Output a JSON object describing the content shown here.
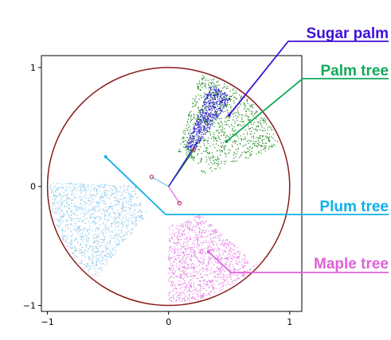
{
  "chart_data": {
    "type": "scatter",
    "xlim": [
      -1.05,
      1.1
    ],
    "ylim": [
      -1.05,
      1.1
    ],
    "x_ticks": [
      "−1",
      "0",
      "1"
    ],
    "y_ticks": [
      "1",
      "0",
      "−1"
    ],
    "x_tick_values": [
      -1,
      0,
      1
    ],
    "y_tick_values": [
      1,
      0,
      -1
    ],
    "grid": false,
    "circle": {
      "center": [
        0,
        0
      ],
      "radius": 1.0,
      "color": "#8b1a1a"
    },
    "series": [
      {
        "name": "Sugar palm",
        "color": "#2a14d8",
        "label_color": "#3f10d8",
        "sector_deg": [
          55,
          68
        ],
        "r": [
          0.35,
          0.92
        ],
        "points": 650,
        "label_anchor": [
          0.5,
          0.6
        ]
      },
      {
        "name": "Palm tree",
        "color": "#1c8a1c",
        "label_color": "#12a85a",
        "sector_deg": [
          20,
          75
        ],
        "r": [
          0.3,
          0.98
        ],
        "points": 900,
        "label_anchor": [
          0.48,
          0.38
        ]
      },
      {
        "name": "Plum tree",
        "color": "#8ec8ec",
        "label_color": "#10b0ea",
        "sector_deg": [
          178,
          232
        ],
        "r": [
          0.27,
          0.98
        ],
        "points": 1200,
        "label_anchor": [
          -0.52,
          0.25
        ]
      },
      {
        "name": "Maple tree",
        "color": "#e278e2",
        "label_color": "#e060d8",
        "sector_deg": [
          270,
          318
        ],
        "r": [
          0.32,
          0.98
        ],
        "points": 1100,
        "label_anchor": [
          0.33,
          -0.55
        ]
      }
    ],
    "branches": [
      {
        "from": [
          0,
          0
        ],
        "to": [
          -0.14,
          0.08
        ],
        "color": "#8ec8ec"
      },
      {
        "from": [
          0,
          0
        ],
        "to": [
          0.09,
          -0.14
        ],
        "color": "#e278e2"
      },
      {
        "from": [
          0,
          0
        ],
        "to": [
          0.21,
          0.31
        ],
        "color": "#1c8a1c"
      },
      {
        "from": [
          0,
          0
        ],
        "to": [
          0.24,
          0.38
        ],
        "color": "#2a14d8"
      }
    ],
    "nodes": [
      {
        "at": [
          -0.14,
          0.08
        ],
        "color": "#c04070"
      },
      {
        "at": [
          0.09,
          -0.14
        ],
        "color": "#c04070"
      },
      {
        "at": [
          0.21,
          0.31
        ],
        "color": "#c04070"
      }
    ]
  }
}
